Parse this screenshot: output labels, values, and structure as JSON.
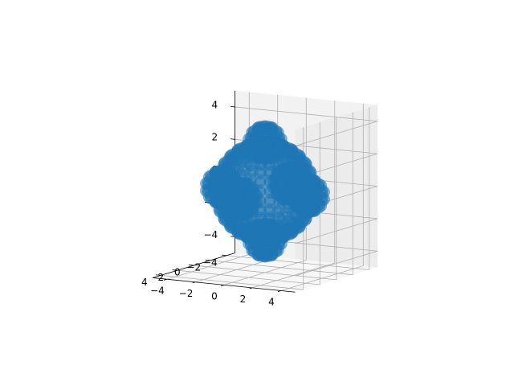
{
  "chart_data": {
    "type": "scatter",
    "projection": "3d",
    "title": "",
    "xlabel": "",
    "ylabel": "",
    "zlabel": "",
    "xlim": [
      -5,
      5
    ],
    "ylim": [
      -5,
      5
    ],
    "zlim": [
      -5,
      5
    ],
    "x_ticks": [
      -4,
      -2,
      0,
      2,
      4
    ],
    "y_ticks": [
      -4,
      -2,
      0,
      2,
      4
    ],
    "z_ticks": [
      -4,
      -2,
      0,
      2,
      4
    ],
    "x_tick_labels": [
      "−4",
      "−2",
      "0",
      "2",
      "4"
    ],
    "y_tick_labels": [
      "−4",
      "−2",
      "0",
      "2",
      "4"
    ],
    "z_tick_labels": [
      "−4",
      "−2",
      "0",
      "2",
      "4"
    ],
    "grid": true,
    "view_elev_deg": 10,
    "view_azim_deg": 30,
    "shape": "sphere with six bulges along the axes",
    "sphere_radius": 3,
    "bulge_center_distance": 3,
    "bulge_radius": 1,
    "point_color": "#1f77b4",
    "pane_color": "#f2f2f2",
    "grid_color": "#b0b0b0"
  }
}
